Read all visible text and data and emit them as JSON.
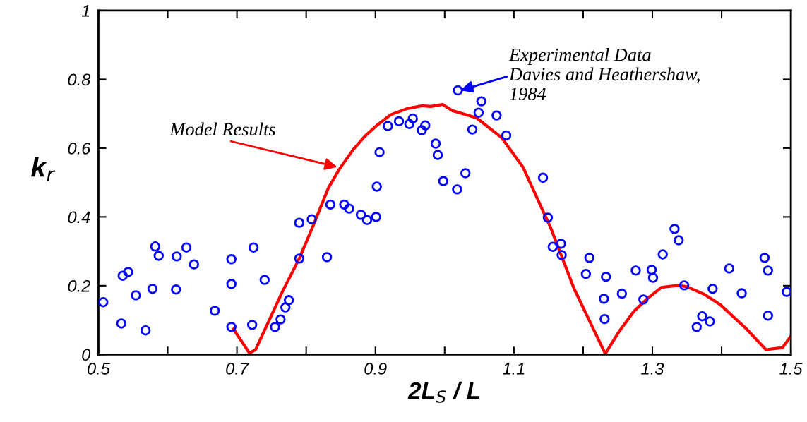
{
  "chart_data": {
    "type": "scatter",
    "xlabel": "2L$_{S}$ / L",
    "ylabel": "k$_{r}$",
    "xlim": [
      0.5,
      1.5
    ],
    "ylim": [
      0,
      1
    ],
    "xticks": [
      0.5,
      {
        "value": 0.6,
        "label": null
      },
      0.7,
      {
        "value": 0.8,
        "label": null
      },
      0.9,
      {
        "value": 1.0,
        "label": null
      },
      1.1,
      {
        "value": 1.2,
        "label": null
      },
      1.3,
      {
        "value": 1.4,
        "label": null
      },
      1.5
    ],
    "yticks": [
      0,
      0.2,
      0.4,
      0.6,
      0.8,
      1
    ],
    "grid": false,
    "legend": false,
    "annotations": [
      {
        "text": "Model Results",
        "x": 0.845,
        "y": 0.545
      },
      {
        "text": "Experimental Data\nDavies and Heathershaw,\n1984",
        "x": 1.023,
        "y": 0.768
      }
    ],
    "series": [
      {
        "marker": "circle",
        "color": "#0000ff",
        "x": [
          0.507,
          0.533,
          0.535,
          0.543,
          0.554,
          0.568,
          0.578,
          0.582,
          0.587,
          0.612,
          0.613,
          0.627,
          0.638,
          0.668,
          0.692,
          0.692,
          0.692,
          0.722,
          0.724,
          0.74,
          0.755,
          0.763,
          0.77,
          0.775,
          0.79,
          0.79,
          0.808,
          0.83,
          0.835,
          0.855,
          0.862,
          0.879,
          0.888,
          0.901,
          0.902,
          0.906,
          0.918,
          0.934,
          0.949,
          0.954,
          0.967,
          0.972,
          0.987,
          0.99,
          0.998,
          1.018,
          1.019,
          1.03,
          1.04,
          1.049,
          1.053,
          1.075,
          1.089,
          1.142,
          1.149,
          1.156,
          1.168,
          1.169,
          1.204,
          1.209,
          1.23,
          1.231,
          1.233,
          1.256,
          1.276,
          1.287,
          1.299,
          1.301,
          1.315,
          1.332,
          1.338,
          1.346,
          1.364,
          1.372,
          1.383,
          1.387,
          1.411,
          1.429,
          1.462,
          1.467,
          1.467,
          1.494
        ],
        "values": [
          0.152,
          0.09,
          0.229,
          0.24,
          0.172,
          0.07,
          0.191,
          0.314,
          0.287,
          0.189,
          0.285,
          0.311,
          0.262,
          0.127,
          0.08,
          0.205,
          0.277,
          0.086,
          0.311,
          0.217,
          0.08,
          0.102,
          0.137,
          0.158,
          0.383,
          0.279,
          0.393,
          0.283,
          0.436,
          0.436,
          0.424,
          0.406,
          0.391,
          0.4,
          0.488,
          0.588,
          0.664,
          0.678,
          0.67,
          0.686,
          0.652,
          0.666,
          0.613,
          0.58,
          0.504,
          0.48,
          0.768,
          0.527,
          0.654,
          0.703,
          0.736,
          0.695,
          0.637,
          0.514,
          0.398,
          0.313,
          0.322,
          0.289,
          0.234,
          0.281,
          0.162,
          0.103,
          0.226,
          0.177,
          0.244,
          0.16,
          0.246,
          0.223,
          0.291,
          0.365,
          0.332,
          0.201,
          0.08,
          0.111,
          0.096,
          0.191,
          0.25,
          0.178,
          0.281,
          0.244,
          0.113,
          0.182
        ]
      },
      {
        "type": "line",
        "marker": "none",
        "line_style": "solid",
        "color": "#ff0000",
        "x": [
          0.695,
          0.718,
          0.727,
          0.766,
          0.79,
          0.809,
          0.832,
          0.848,
          0.868,
          0.885,
          0.902,
          0.922,
          0.946,
          0.967,
          0.98,
          0.997,
          1.011,
          1.046,
          1.082,
          1.113,
          1.153,
          1.187,
          1.232,
          1.252,
          1.273,
          1.293,
          1.313,
          1.337,
          1.35,
          1.374,
          1.398,
          1.436,
          1.464,
          1.488,
          1.5
        ],
        "values": [
          0.074,
          0.004,
          0.014,
          0.184,
          0.279,
          0.369,
          0.484,
          0.539,
          0.596,
          0.635,
          0.666,
          0.697,
          0.715,
          0.723,
          0.721,
          0.727,
          0.709,
          0.688,
          0.631,
          0.545,
          0.369,
          0.191,
          0.002,
          0.067,
          0.125,
          0.163,
          0.195,
          0.201,
          0.197,
          0.176,
          0.145,
          0.074,
          0.014,
          0.02,
          0.053
        ]
      }
    ]
  }
}
